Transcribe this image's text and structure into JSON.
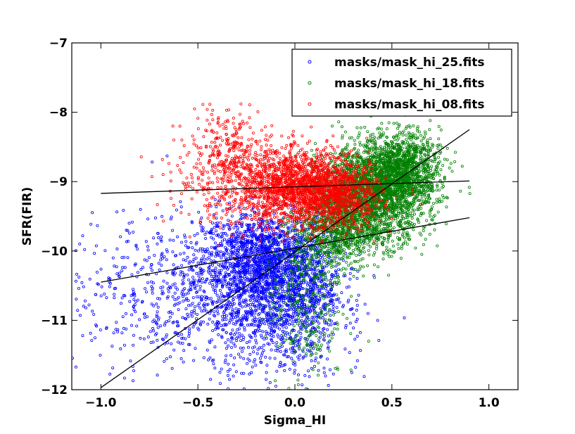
{
  "chart_data": {
    "type": "scatter",
    "title": "",
    "xlabel": "Sigma_HI",
    "ylabel": "SFR(FIR)",
    "xlim": [
      -1.15,
      1.15
    ],
    "ylim": [
      -12,
      -7
    ],
    "xticks": [
      -1.0,
      -0.5,
      0.0,
      0.5,
      1.0
    ],
    "xtick_labels": [
      "−1.0",
      "−0.5",
      "0.0",
      "0.5",
      "1.0"
    ],
    "yticks": [
      -7,
      -8,
      -9,
      -10,
      -11,
      -12
    ],
    "ytick_labels": [
      "−7",
      "−8",
      "−9",
      "−10",
      "−11",
      "−12"
    ],
    "grid": false,
    "legend_position": "top-right",
    "marker": "open-circle",
    "series": [
      {
        "name": "masks/mask_hi_25.fits",
        "color": "#0000ff",
        "clusters": [
          {
            "cx": -0.15,
            "cy": -10.15,
            "sx": 0.16,
            "sy": 0.35,
            "n": 1500
          },
          {
            "cx": -0.3,
            "cy": -10.5,
            "sx": 0.22,
            "sy": 0.5,
            "n": 700
          },
          {
            "cx": -0.75,
            "cy": -10.6,
            "sx": 0.25,
            "sy": 0.55,
            "n": 350
          },
          {
            "cx": -0.1,
            "cy": -11.2,
            "sx": 0.17,
            "sy": 0.4,
            "n": 400
          },
          {
            "cx": 0.05,
            "cy": -10.6,
            "sx": 0.12,
            "sy": 0.4,
            "n": 450
          }
        ]
      },
      {
        "name": "masks/mask_hi_18.fits",
        "color": "#008000",
        "clusters": [
          {
            "cx": 0.4,
            "cy": -9.2,
            "sx": 0.14,
            "sy": 0.35,
            "n": 2200
          },
          {
            "cx": 0.55,
            "cy": -8.8,
            "sx": 0.1,
            "sy": 0.25,
            "n": 1100
          },
          {
            "cx": 0.2,
            "cy": -9.7,
            "sx": 0.1,
            "sy": 0.3,
            "n": 700
          },
          {
            "cx": 0.05,
            "cy": -10.7,
            "sx": 0.1,
            "sy": 0.6,
            "n": 300
          }
        ]
      },
      {
        "name": "masks/mask_hi_08.fits",
        "color": "#ff0000",
        "clusters": [
          {
            "cx": 0.05,
            "cy": -9.1,
            "sx": 0.14,
            "sy": 0.25,
            "n": 1500
          },
          {
            "cx": -0.25,
            "cy": -8.95,
            "sx": 0.18,
            "sy": 0.35,
            "n": 650
          },
          {
            "cx": 0.25,
            "cy": -9.2,
            "sx": 0.1,
            "sy": 0.25,
            "n": 500
          },
          {
            "cx": -0.35,
            "cy": -8.5,
            "sx": 0.08,
            "sy": 0.25,
            "n": 120
          }
        ]
      }
    ],
    "fit_lines": [
      {
        "x": [
          -1.0,
          0.9
        ],
        "y": [
          -11.97,
          -8.25
        ]
      },
      {
        "x": [
          -1.0,
          0.9
        ],
        "y": [
          -10.45,
          -9.52
        ]
      },
      {
        "x": [
          -1.0,
          0.9
        ],
        "y": [
          -9.17,
          -8.99
        ]
      }
    ]
  }
}
